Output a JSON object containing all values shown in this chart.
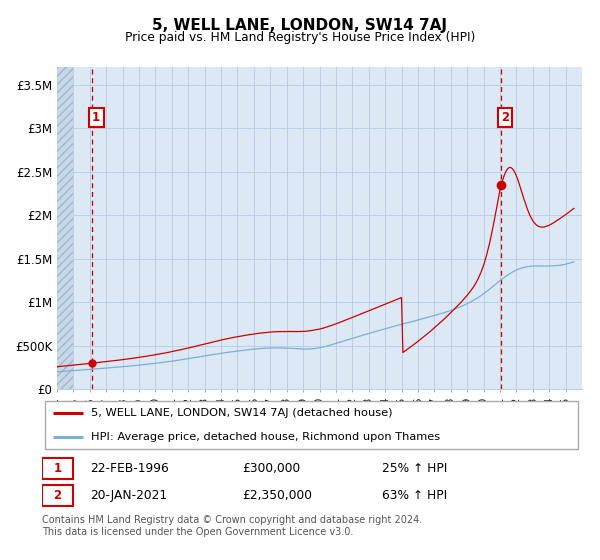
{
  "title": "5, WELL LANE, LONDON, SW14 7AJ",
  "subtitle": "Price paid vs. HM Land Registry's House Price Index (HPI)",
  "ylabel_ticks": [
    "£0",
    "£500K",
    "£1M",
    "£1.5M",
    "£2M",
    "£2.5M",
    "£3M",
    "£3.5M"
  ],
  "ytick_values": [
    0,
    500000,
    1000000,
    1500000,
    2000000,
    2500000,
    3000000,
    3500000
  ],
  "ylim": [
    0,
    3700000
  ],
  "xlim_start": 1994.0,
  "xlim_end": 2026.0,
  "xticks": [
    1994,
    1995,
    1996,
    1997,
    1998,
    1999,
    2000,
    2001,
    2002,
    2003,
    2004,
    2005,
    2006,
    2007,
    2008,
    2009,
    2010,
    2011,
    2012,
    2013,
    2014,
    2015,
    2016,
    2017,
    2018,
    2019,
    2020,
    2021,
    2022,
    2023,
    2024,
    2025
  ],
  "sale1_x": 1996.14,
  "sale1_y": 300000,
  "sale2_x": 2021.05,
  "sale2_y": 2350000,
  "sale_color": "#cc0000",
  "hpi_color": "#7ab0d4",
  "annotation_box_color": "#cc0000",
  "bg_color": "#dce9f5",
  "legend_label_red": "5, WELL LANE, LONDON, SW14 7AJ (detached house)",
  "legend_label_blue": "HPI: Average price, detached house, Richmond upon Thames",
  "note1_date": "22-FEB-1996",
  "note1_price": "£300,000",
  "note1_hpi": "25% ↑ HPI",
  "note2_date": "20-JAN-2021",
  "note2_price": "£2,350,000",
  "note2_hpi": "63% ↑ HPI",
  "footer": "Contains HM Land Registry data © Crown copyright and database right 2024.\nThis data is licensed under the Open Government Licence v3.0.",
  "grid_color": "#b8d0e8"
}
